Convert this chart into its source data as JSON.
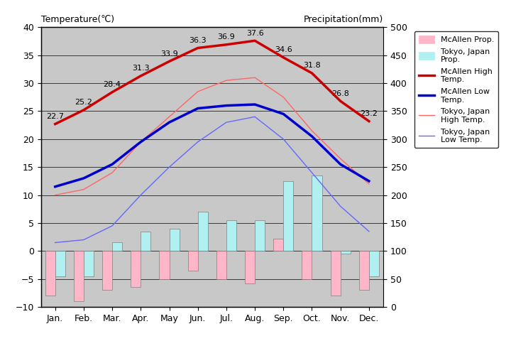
{
  "months": [
    "Jan.",
    "Feb.",
    "Mar.",
    "Apr.",
    "May",
    "Jun.",
    "Jul.",
    "Aug.",
    "Sep.",
    "Oct.",
    "Nov.",
    "Dec."
  ],
  "mcallen_high": [
    22.7,
    25.2,
    28.4,
    31.3,
    33.9,
    36.3,
    36.9,
    37.6,
    34.6,
    31.8,
    26.8,
    23.2
  ],
  "mcallen_low": [
    11.5,
    13.0,
    15.5,
    19.5,
    23.0,
    25.5,
    26.0,
    26.2,
    24.5,
    20.5,
    15.5,
    12.5
  ],
  "tokyo_high": [
    10.0,
    11.0,
    14.0,
    19.5,
    24.0,
    28.5,
    30.5,
    31.0,
    27.5,
    21.5,
    16.5,
    12.0
  ],
  "tokyo_low": [
    1.5,
    2.0,
    4.5,
    10.0,
    15.0,
    19.5,
    23.0,
    24.0,
    20.0,
    14.0,
    8.0,
    3.5
  ],
  "mcallen_precip_chart": [
    -8.0,
    -9.0,
    -7.0,
    -6.5,
    -5.0,
    -3.5,
    -5.0,
    -5.8,
    2.2,
    -5.0,
    -8.0,
    -7.0
  ],
  "tokyo_precip_chart": [
    -4.5,
    -4.5,
    1.5,
    3.5,
    4.0,
    7.0,
    5.5,
    5.5,
    12.5,
    13.5,
    -0.5,
    -4.5
  ],
  "title_left": "Temperature(℃)",
  "title_right": "Precipitation(mm)",
  "mcallen_high_label": "McAllen High\nTemp.",
  "mcallen_low_label": "McAllen Low\nTemp.",
  "tokyo_high_label": "Tokyo, Japan\nHigh Temp.",
  "tokyo_low_label": "Tokyo, Japan\nLow Temp.",
  "mcallen_precip_label": "McAllen Prop.",
  "tokyo_precip_label": "Tokyo, Japan\nProp.",
  "ylim_left": [
    -10,
    40
  ],
  "ylim_right": [
    0,
    500
  ],
  "bg_color": "#c8c8c8",
  "plot_area_color": "#c8c8c8",
  "mcallen_high_color": "#cc0000",
  "mcallen_low_color": "#0000cc",
  "tokyo_high_color": "#ff6666",
  "tokyo_low_color": "#6666ff",
  "mcallen_precip_color": "#ffb6c8",
  "tokyo_precip_color": "#b0f0f0",
  "grid_color": "#000000",
  "yticks_left": [
    -10,
    -5,
    0,
    5,
    10,
    15,
    20,
    25,
    30,
    35,
    40
  ],
  "yticks_right": [
    0,
    50,
    100,
    150,
    200,
    250,
    300,
    350,
    400,
    450,
    500
  ],
  "bar_width": 0.35
}
